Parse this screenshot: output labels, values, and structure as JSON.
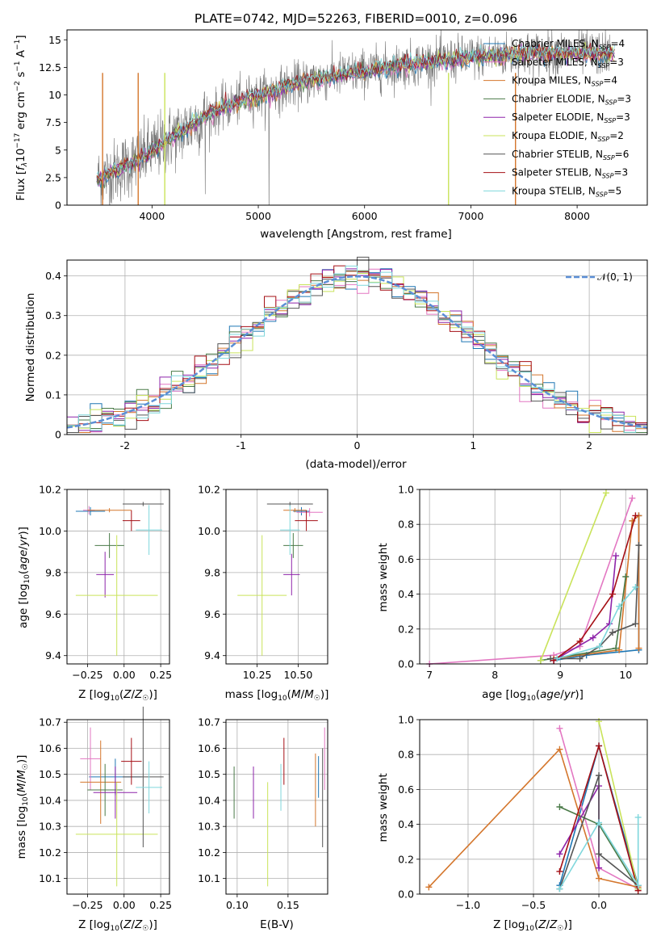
{
  "chart_data": [
    {
      "id": "spectrum",
      "type": "line",
      "title": "PLATE=0742, MJD=52263, FIBERID=0010, z=0.096",
      "xlabel": "wavelength [Angstrom, rest frame]",
      "ylabel": "Flux [f_λ 10^-17 erg cm^-2 s^-1 A^-1]",
      "xlim": [
        3200,
        8660
      ],
      "ylim": [
        0,
        15.9
      ],
      "xticks": [
        4000,
        5000,
        6000,
        7000,
        8000
      ],
      "yticks": [
        0.0,
        2.5,
        5.0,
        7.5,
        10.0,
        12.5,
        15.0
      ],
      "grid": false,
      "legend_position": "right",
      "data_trend": {
        "x": [
          3500,
          3700,
          3900,
          4100,
          4300,
          4500,
          4700,
          4900,
          5100,
          5300,
          5500,
          5700,
          5900,
          6100,
          6300,
          6500,
          6700,
          6900,
          7100,
          7300,
          7500,
          7700,
          7900,
          8100,
          8300
        ],
        "y": [
          2.4,
          3.3,
          4.3,
          5.6,
          6.8,
          8.1,
          8.9,
          9.7,
          10.2,
          10.8,
          11.3,
          11.7,
          12.0,
          12.3,
          12.6,
          12.9,
          13.1,
          13.3,
          13.5,
          13.6,
          13.7,
          13.8,
          13.8,
          13.8,
          13.7
        ]
      },
      "series": [
        {
          "name": "Chabrier MILES, N_SSP=4",
          "color": "#1f77b4"
        },
        {
          "name": "Salpeter MILES, N_SSP=3",
          "color": "#e377c2"
        },
        {
          "name": "Kroupa MILES, N_SSP=4",
          "color": "#d4762c"
        },
        {
          "name": "Chabrier ELODIE, N_SSP=3",
          "color": "#4a7a48"
        },
        {
          "name": "Salpeter ELODIE, N_SSP=3",
          "color": "#8e24aa"
        },
        {
          "name": "Kroupa ELODIE, N_SSP=2",
          "color": "#c9e35a"
        },
        {
          "name": "Chabrier STELIB, N_SSP=6",
          "color": "#555555"
        },
        {
          "name": "Salpeter STELIB, N_SSP=3",
          "color": "#a50f15"
        },
        {
          "name": "Kroupa STELIB, N_SSP=5",
          "color": "#7fd7dc"
        }
      ]
    },
    {
      "id": "residuals",
      "type": "line",
      "xlabel": "(data-model)/error",
      "ylabel": "Normed distribution",
      "xlim": [
        -2.5,
        2.5
      ],
      "ylim": [
        0,
        0.44
      ],
      "xticks": [
        -2,
        -1,
        0,
        1,
        2
      ],
      "yticks": [
        0.0,
        0.1,
        0.2,
        0.3,
        0.4
      ],
      "grid": true,
      "legend": "𝒩(0, 1)",
      "legend_position": "top-right",
      "normal_curve_color": "#5b8fd6"
    },
    {
      "id": "age-vs-z",
      "type": "scatter",
      "xlabel": "Z [log10(Z/Z☉)]",
      "ylabel": "age  [log10(age/yr)]",
      "xlim": [
        -0.39,
        0.31
      ],
      "ylim": [
        9.36,
        10.2
      ],
      "xticks": [
        -0.25,
        0.0,
        0.25
      ],
      "xticklabels": [
        "−0.25",
        "0.00",
        "0.25"
      ],
      "yticks": [
        9.4,
        9.6,
        9.8,
        10.0,
        10.2
      ],
      "yticklabels": [
        "9.4",
        "9.6",
        "9.8",
        "10.0",
        "10.2"
      ],
      "grid": true,
      "points": [
        {
          "x": -0.23,
          "y": 10.095,
          "xerr": 0.1,
          "yerr": 0.02,
          "color": "#1f77b4"
        },
        {
          "x": -0.24,
          "y": 10.1,
          "xerr": 0.04,
          "yerr": 0.02,
          "color": "#e377c2"
        },
        {
          "x": -0.1,
          "y": 10.1,
          "xerr": 0.15,
          "yerr": 0.01,
          "color": "#d4762c"
        },
        {
          "x": -0.1,
          "y": 9.93,
          "xerr": 0.1,
          "yerr": 0.06,
          "color": "#4a7a48"
        },
        {
          "x": -0.13,
          "y": 9.79,
          "xerr": 0.06,
          "yerr": 0.11,
          "color": "#8e24aa"
        },
        {
          "x": -0.05,
          "y": 9.69,
          "xerr": 0.28,
          "yerr": 0.29,
          "color": "#c9e35a"
        },
        {
          "x": 0.13,
          "y": 10.13,
          "xerr": 0.14,
          "yerr": 0.01,
          "color": "#555555"
        },
        {
          "x": 0.05,
          "y": 10.05,
          "xerr": 0.06,
          "yerr": 0.05,
          "color": "#a50f15"
        },
        {
          "x": 0.17,
          "y": 10.005,
          "xerr": 0.09,
          "yerr": 0.12,
          "color": "#7fd7dc"
        }
      ]
    },
    {
      "id": "age-vs-mass",
      "type": "scatter",
      "xlabel": "mass [log10(M/M☉)]",
      "xlim": [
        10.06,
        10.68
      ],
      "ylim": [
        9.36,
        10.2
      ],
      "xticks": [
        10.25,
        10.5
      ],
      "xticklabels": [
        "10.25",
        "10.50"
      ],
      "yticks": [
        9.4,
        9.6,
        9.8,
        10.0,
        10.2
      ],
      "yticklabels": [
        "9.4",
        "9.6",
        "9.8",
        "10.0",
        "10.2"
      ],
      "grid": true,
      "points": [
        {
          "x": 10.52,
          "y": 10.095,
          "xerr": 0.05,
          "yerr": 0.02,
          "color": "#1f77b4"
        },
        {
          "x": 10.57,
          "y": 10.09,
          "xerr": 0.08,
          "yerr": 0.02,
          "color": "#e377c2"
        },
        {
          "x": 10.48,
          "y": 10.1,
          "xerr": 0.07,
          "yerr": 0.01,
          "color": "#d4762c"
        },
        {
          "x": 10.47,
          "y": 9.93,
          "xerr": 0.06,
          "yerr": 0.06,
          "color": "#4a7a48"
        },
        {
          "x": 10.46,
          "y": 9.79,
          "xerr": 0.05,
          "yerr": 0.1,
          "color": "#8e24aa"
        },
        {
          "x": 10.28,
          "y": 9.69,
          "xerr": 0.15,
          "yerr": 0.29,
          "color": "#c9e35a"
        },
        {
          "x": 10.45,
          "y": 10.13,
          "xerr": 0.14,
          "yerr": 0.01,
          "color": "#555555"
        },
        {
          "x": 10.55,
          "y": 10.05,
          "xerr": 0.07,
          "yerr": 0.05,
          "color": "#a50f15"
        },
        {
          "x": 10.45,
          "y": 10.005,
          "xerr": 0.06,
          "yerr": 0.12,
          "color": "#7fd7dc"
        }
      ]
    },
    {
      "id": "mass-weight-vs-age",
      "type": "line",
      "xlabel": "age  [log10(age/yr)]",
      "ylabel": "mass weight",
      "xlim": [
        6.85,
        10.33
      ],
      "ylim": [
        0,
        1.0
      ],
      "xticks": [
        7,
        8,
        9,
        10
      ],
      "xticklabels": [
        "7",
        "8",
        "9",
        "10"
      ],
      "yticks": [
        0.0,
        0.2,
        0.4,
        0.6,
        0.8,
        1.0
      ],
      "yticklabels": [
        "0.0",
        "0.2",
        "0.4",
        "0.6",
        "0.8",
        "1.0"
      ],
      "grid": true,
      "series": [
        {
          "color": "#1f77b4",
          "x": [
            8.9,
            9.4,
            10.2,
            10.2
          ],
          "y": [
            0.02,
            0.05,
            0.08,
            0.85
          ]
        },
        {
          "color": "#e377c2",
          "x": [
            7.0,
            8.9,
            9.3,
            10.1
          ],
          "y": [
            0.0,
            0.05,
            0.1,
            0.95
          ]
        },
        {
          "color": "#d4762c",
          "x": [
            8.9,
            9.9,
            10.1,
            10.2,
            10.2
          ],
          "y": [
            0.03,
            0.08,
            0.82,
            0.85,
            0.09
          ]
        },
        {
          "color": "#4a7a48",
          "x": [
            8.7,
            9.85,
            10.0
          ],
          "y": [
            0.02,
            0.09,
            0.5
          ]
        },
        {
          "color": "#8e24aa",
          "x": [
            8.9,
            9.5,
            9.75,
            9.85
          ],
          "y": [
            0.02,
            0.15,
            0.23,
            0.62
          ]
        },
        {
          "color": "#c9e35a",
          "x": [
            8.7,
            9.7
          ],
          "y": [
            0.02,
            0.98
          ]
        },
        {
          "color": "#555555",
          "x": [
            8.85,
            9.3,
            9.6,
            9.8,
            10.15,
            10.2
          ],
          "y": [
            0.03,
            0.03,
            0.1,
            0.18,
            0.23,
            0.68
          ]
        },
        {
          "color": "#a50f15",
          "x": [
            8.9,
            9.3,
            9.8,
            10.15
          ],
          "y": [
            0.02,
            0.13,
            0.4,
            0.85
          ]
        },
        {
          "color": "#7fd7dc",
          "x": [
            8.95,
            9.6,
            9.9,
            10.15
          ],
          "y": [
            0.03,
            0.1,
            0.33,
            0.44
          ]
        }
      ]
    },
    {
      "id": "mass-vs-z",
      "type": "scatter",
      "xlabel": "Z [log10(Z/Z☉)]",
      "ylabel": "mass [log10(M/M☉)]",
      "xlim": [
        -0.39,
        0.31
      ],
      "ylim": [
        10.04,
        10.71
      ],
      "xticks": [
        -0.25,
        0.0,
        0.25
      ],
      "xticklabels": [
        "−0.25",
        "0.00",
        "0.25"
      ],
      "yticks": [
        10.1,
        10.2,
        10.3,
        10.4,
        10.5,
        10.6,
        10.7
      ],
      "yticklabels": [
        "10.1",
        "10.2",
        "10.3",
        "10.4",
        "10.5",
        "10.6",
        "10.7"
      ],
      "grid": true,
      "points": [
        {
          "x": -0.06,
          "y": 10.49,
          "xerr": 0.18,
          "yerr": 0.07,
          "color": "#1f77b4"
        },
        {
          "x": -0.23,
          "y": 10.56,
          "xerr": 0.07,
          "yerr": 0.12,
          "color": "#e377c2"
        },
        {
          "x": -0.16,
          "y": 10.47,
          "xerr": 0.14,
          "yerr": 0.16,
          "color": "#d4762c"
        },
        {
          "x": -0.13,
          "y": 10.44,
          "xerr": 0.12,
          "yerr": 0.1,
          "color": "#4a7a48"
        },
        {
          "x": -0.06,
          "y": 10.43,
          "xerr": 0.15,
          "yerr": 0.1,
          "color": "#8e24aa"
        },
        {
          "x": -0.05,
          "y": 10.27,
          "xerr": 0.28,
          "yerr": 0.2,
          "color": "#c9e35a"
        },
        {
          "x": 0.13,
          "y": 10.49,
          "xerr": 0.14,
          "yerr": 0.27,
          "color": "#555555"
        },
        {
          "x": 0.05,
          "y": 10.55,
          "xerr": 0.07,
          "yerr": 0.09,
          "color": "#a50f15"
        },
        {
          "x": 0.17,
          "y": 10.45,
          "xerr": 0.09,
          "yerr": 0.1,
          "color": "#7fd7dc"
        }
      ]
    },
    {
      "id": "mass-vs-ebv",
      "type": "scatter",
      "xlabel": "E(B-V)",
      "xlim": [
        0.089,
        0.189
      ],
      "ylim": [
        10.04,
        10.71
      ],
      "xticks": [
        0.1,
        0.15
      ],
      "xticklabels": [
        "0.10",
        "0.15"
      ],
      "yticks": [
        10.1,
        10.2,
        10.3,
        10.4,
        10.5,
        10.6,
        10.7
      ],
      "yticklabels": [
        "10.1",
        "10.2",
        "10.3",
        "10.4",
        "10.5",
        "10.6",
        "10.7"
      ],
      "grid": true,
      "points": [
        {
          "x": 0.18,
          "y": 10.49,
          "xerr": 0.0,
          "yerr": 0.08,
          "color": "#1f77b4"
        },
        {
          "x": 0.186,
          "y": 10.56,
          "xerr": 0.0,
          "yerr": 0.12,
          "color": "#e377c2"
        },
        {
          "x": 0.177,
          "y": 10.44,
          "xerr": 0.0,
          "yerr": 0.14,
          "color": "#d4762c"
        },
        {
          "x": 0.097,
          "y": 10.43,
          "xerr": 0.0,
          "yerr": 0.1,
          "color": "#4a7a48"
        },
        {
          "x": 0.116,
          "y": 10.43,
          "xerr": 0.0,
          "yerr": 0.1,
          "color": "#8e24aa"
        },
        {
          "x": 0.13,
          "y": 10.27,
          "xerr": 0.0,
          "yerr": 0.2,
          "color": "#c9e35a"
        },
        {
          "x": 0.184,
          "y": 10.41,
          "xerr": 0.0,
          "yerr": 0.19,
          "color": "#555555"
        },
        {
          "x": 0.146,
          "y": 10.55,
          "xerr": 0.0,
          "yerr": 0.09,
          "color": "#a50f15"
        },
        {
          "x": 0.143,
          "y": 10.45,
          "xerr": 0.0,
          "yerr": 0.09,
          "color": "#7fd7dc"
        }
      ]
    },
    {
      "id": "mass-weight-vs-z",
      "type": "line",
      "xlabel": "Z [log10(Z/Z☉)]",
      "ylabel": "mass weight",
      "xlim": [
        -1.37,
        0.37
      ],
      "ylim": [
        0,
        1.0
      ],
      "xticks": [
        -1.0,
        -0.5,
        0.0
      ],
      "xticklabels": [
        "−1.0",
        "−0.5",
        "0.0"
      ],
      "yticks": [
        0.0,
        0.2,
        0.4,
        0.6,
        0.8,
        1.0
      ],
      "yticklabels": [
        "0.0",
        "0.2",
        "0.4",
        "0.6",
        "0.8",
        "1.0"
      ],
      "grid": true,
      "series": [
        {
          "color": "#1f77b4",
          "x": [
            -0.3,
            0.0,
            0.3
          ],
          "y": [
            0.05,
            0.85,
            0.05
          ]
        },
        {
          "color": "#e377c2",
          "x": [
            -0.3,
            0.0,
            0.3
          ],
          "y": [
            0.95,
            0.15,
            0.03
          ]
        },
        {
          "color": "#d4762c",
          "x": [
            -1.3,
            -0.3,
            0.0,
            0.3
          ],
          "y": [
            0.04,
            0.83,
            0.09,
            0.04
          ]
        },
        {
          "color": "#4a7a48",
          "x": [
            -0.3,
            0.0,
            0.3
          ],
          "y": [
            0.5,
            0.4,
            0.03
          ]
        },
        {
          "color": "#8e24aa",
          "x": [
            -0.3,
            0.0,
            0.0
          ],
          "y": [
            0.23,
            0.62,
            0.15
          ]
        },
        {
          "color": "#c9e35a",
          "x": [
            0.0,
            0.3
          ],
          "y": [
            0.99,
            0.03
          ]
        },
        {
          "color": "#555555",
          "x": [
            -0.3,
            0.0,
            0.0,
            0.3
          ],
          "y": [
            0.03,
            0.68,
            0.23,
            0.05
          ]
        },
        {
          "color": "#a50f15",
          "x": [
            -0.3,
            0.0,
            0.3
          ],
          "y": [
            0.13,
            0.85,
            0.02
          ]
        },
        {
          "color": "#7fd7dc",
          "x": [
            -0.3,
            0.0,
            0.3,
            0.3
          ],
          "y": [
            0.03,
            0.41,
            0.05,
            0.44
          ]
        }
      ]
    }
  ]
}
